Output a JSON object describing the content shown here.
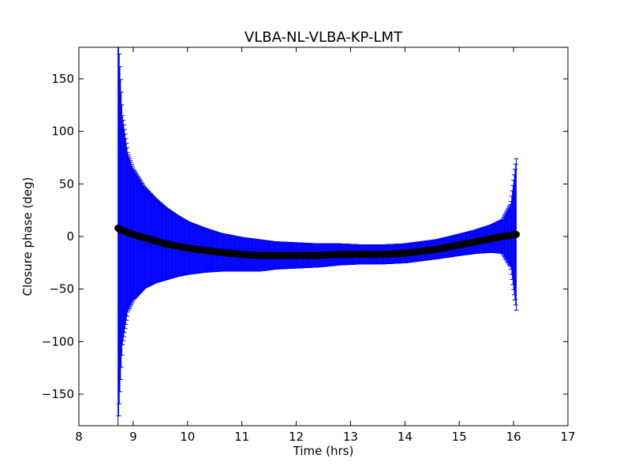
{
  "chart_data": {
    "type": "scatter",
    "title": "VLBA-NL-VLBA-KP-LMT",
    "xlabel": "Time (hrs)",
    "ylabel": "Closure phase (deg)",
    "xlim": [
      8,
      17
    ],
    "ylim": [
      -180,
      180
    ],
    "xticks": [
      8,
      9,
      10,
      11,
      12,
      13,
      14,
      15,
      16,
      17
    ],
    "yticks": [
      -150,
      -100,
      -50,
      0,
      50,
      100,
      150
    ],
    "grid": false,
    "marker": "circle",
    "colors": {
      "errorbar": "#0000ff",
      "marker": "#000000",
      "background": "#ffffff",
      "axes": "#000000"
    },
    "series": [
      {
        "x": [
          8.72,
          8.75,
          8.8,
          8.9,
          9.0,
          9.2,
          9.4,
          9.6,
          9.8,
          10.0,
          10.3,
          10.6,
          11.0,
          11.3,
          11.6,
          12.0,
          12.4,
          12.8,
          13.2,
          13.6,
          14.0,
          14.3,
          14.6,
          15.0,
          15.3,
          15.6,
          15.8,
          15.95,
          16.05
        ],
        "y": [
          8,
          7,
          6,
          4,
          2,
          -1,
          -4,
          -7,
          -9,
          -11,
          -13,
          -15,
          -17,
          -18,
          -18,
          -18,
          -18,
          -17,
          -17,
          -17,
          -16,
          -14,
          -12,
          -8,
          -5,
          -2,
          0,
          1,
          2
        ],
        "yerr": [
          190,
          160,
          110,
          75,
          62,
          48,
          40,
          34,
          29,
          25,
          21,
          18,
          16,
          15,
          13,
          12,
          11,
          10,
          9,
          9,
          9,
          9,
          9,
          10,
          11,
          13,
          16,
          30,
          72
        ]
      }
    ]
  }
}
